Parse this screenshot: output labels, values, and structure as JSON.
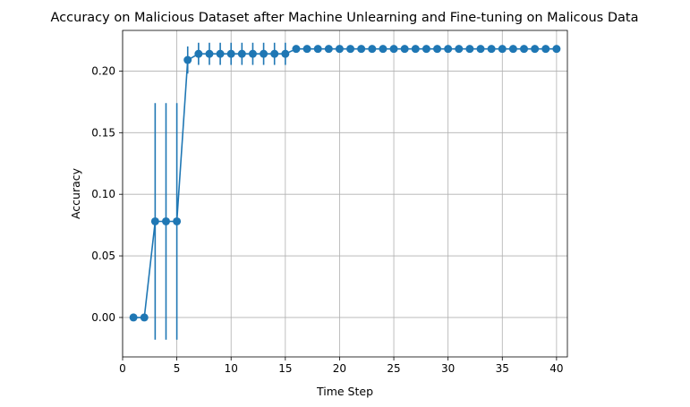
{
  "chart_data": {
    "type": "line",
    "title": "Accuracy on Malicious Dataset after Machine Unlearning and Fine-tuning on Malicous Data",
    "xlabel": "Time Step",
    "ylabel": "Accuracy",
    "xlim": [
      0,
      41
    ],
    "ylim": [
      -0.032,
      0.233
    ],
    "x_ticks": [
      0,
      5,
      10,
      15,
      20,
      25,
      30,
      35,
      40
    ],
    "y_ticks": [
      0.0,
      0.05,
      0.1,
      0.15,
      0.2
    ],
    "x_tick_labels": [
      "0",
      "5",
      "10",
      "15",
      "20",
      "25",
      "30",
      "35",
      "40"
    ],
    "y_tick_labels": [
      "0.00",
      "0.05",
      "0.10",
      "0.15",
      "0.20"
    ],
    "grid": true,
    "series": [
      {
        "x": [
          1,
          2,
          3,
          4,
          5,
          6,
          7,
          8,
          9,
          10,
          11,
          12,
          13,
          14,
          15,
          16,
          17,
          18,
          19,
          20,
          21,
          22,
          23,
          24,
          25,
          26,
          27,
          28,
          29,
          30,
          31,
          32,
          33,
          34,
          35,
          36,
          37,
          38,
          39,
          40
        ],
        "y": [
          0.0,
          0.0,
          0.078,
          0.078,
          0.078,
          0.209,
          0.214,
          0.214,
          0.214,
          0.214,
          0.214,
          0.214,
          0.214,
          0.214,
          0.214,
          0.218,
          0.218,
          0.218,
          0.218,
          0.218,
          0.218,
          0.218,
          0.218,
          0.218,
          0.218,
          0.218,
          0.218,
          0.218,
          0.218,
          0.218,
          0.218,
          0.218,
          0.218,
          0.218,
          0.218,
          0.218,
          0.218,
          0.218,
          0.218,
          0.218
        ],
        "error": [
          0.0,
          0.0,
          0.096,
          0.096,
          0.096,
          0.011,
          0.009,
          0.009,
          0.009,
          0.009,
          0.009,
          0.009,
          0.009,
          0.009,
          0.009,
          0.0,
          0.0,
          0.0,
          0.0,
          0.0,
          0.0,
          0.0,
          0.0,
          0.0,
          0.0,
          0.0,
          0.0,
          0.0,
          0.0,
          0.0,
          0.0,
          0.0,
          0.0,
          0.0,
          0.0,
          0.0,
          0.0,
          0.0,
          0.0,
          0.0
        ]
      }
    ],
    "colors": {
      "series": "#1f77b4",
      "grid": "#b0b0b0",
      "axis": "#000000"
    }
  }
}
